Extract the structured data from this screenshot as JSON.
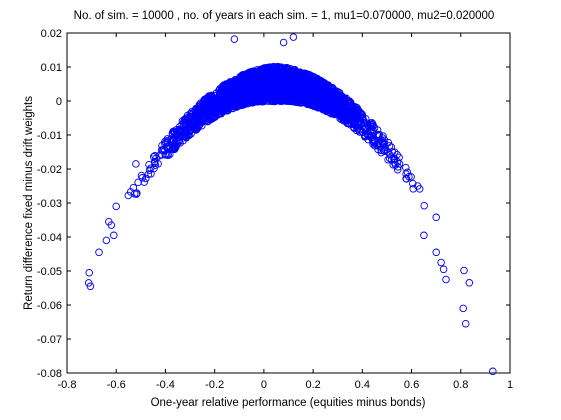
{
  "chart_data": {
    "type": "scatter",
    "title": "No. of sim. = 10000 , no. of years in each sim. = 1, mu1=0.070000, mu2=0.020000",
    "xlabel": "One-year relative performance (equities minus bonds)",
    "ylabel": "Return difference fixed minus drift weights",
    "xlim": [
      -0.8,
      1
    ],
    "ylim": [
      -0.08,
      0.02
    ],
    "xticks": [
      -0.8,
      -0.6,
      -0.4,
      -0.2,
      0,
      0.2,
      0.4,
      0.6,
      0.8,
      1
    ],
    "xtick_labels": [
      "-0.8",
      "-0.6",
      "-0.4",
      "-0.2",
      "0",
      "0.2",
      "0.4",
      "0.6",
      "0.8",
      "1"
    ],
    "yticks": [
      0.02,
      0.01,
      0,
      -0.01,
      -0.02,
      -0.03,
      -0.04,
      -0.05,
      -0.06,
      -0.07,
      -0.08
    ],
    "ytick_labels": [
      "0.02",
      "0.01",
      "0",
      "-0.01",
      "-0.02",
      "-0.03",
      "-0.04",
      "-0.05",
      "-0.06",
      "-0.07",
      "-0.08"
    ],
    "grid": false,
    "legend": false,
    "marker": "open-circle",
    "color": "#0000ff",
    "n_points": 10000,
    "relationship": "inverted parabola, y ≈ 0.005 - 0.0957*(x-0.05)^2, vertical spread about 0.005 near x=0 narrowing toward the tails",
    "outliers": [
      {
        "x": -0.71,
        "y": -0.0505
      },
      {
        "x": -0.712,
        "y": -0.0535
      },
      {
        "x": -0.705,
        "y": -0.0545
      },
      {
        "x": -0.67,
        "y": -0.0445
      },
      {
        "x": -0.64,
        "y": -0.041
      },
      {
        "x": -0.63,
        "y": -0.0355
      },
      {
        "x": -0.62,
        "y": -0.0365
      },
      {
        "x": -0.61,
        "y": -0.0395
      },
      {
        "x": -0.6,
        "y": -0.031
      },
      {
        "x": -0.53,
        "y": -0.0255
      },
      {
        "x": -0.52,
        "y": -0.0185
      },
      {
        "x": -0.12,
        "y": 0.0182
      },
      {
        "x": 0.12,
        "y": 0.0188
      },
      {
        "x": 0.08,
        "y": 0.0172
      },
      {
        "x": 0.65,
        "y": -0.0395
      },
      {
        "x": 0.7,
        "y": -0.0445
      },
      {
        "x": 0.72,
        "y": -0.0475
      },
      {
        "x": 0.73,
        "y": -0.0495
      },
      {
        "x": 0.74,
        "y": -0.0525
      },
      {
        "x": 0.81,
        "y": -0.061
      },
      {
        "x": 0.82,
        "y": -0.0655
      },
      {
        "x": 0.93,
        "y": -0.0795
      }
    ]
  }
}
